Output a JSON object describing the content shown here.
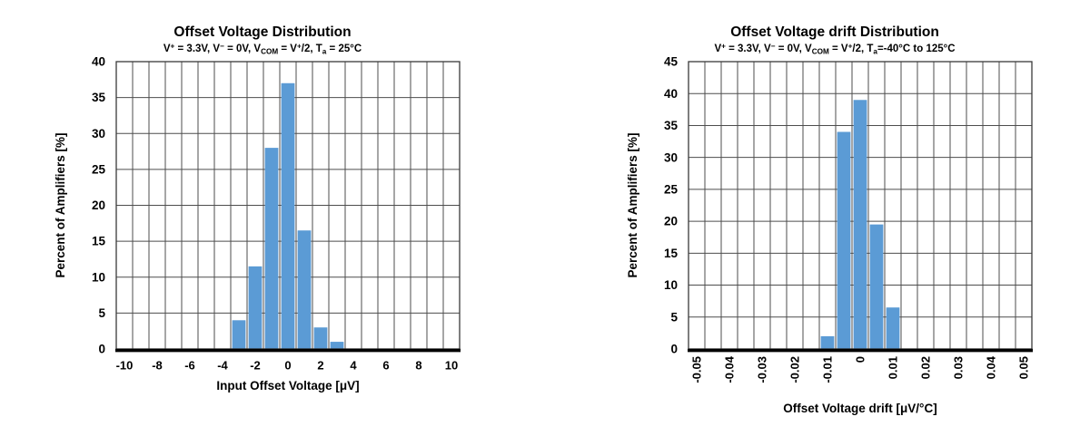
{
  "page": {
    "background": "#ffffff"
  },
  "colors": {
    "bar_fill": "#5b9bd5",
    "grid_line": "#4d4d4d",
    "plot_border": "#3a3a3a",
    "axis_line": "#000000",
    "text": "#000000"
  },
  "chart_data": [
    {
      "id": "offset-voltage-distribution",
      "type": "bar",
      "title": "Offset Voltage Distribution",
      "subtitle_segments": [
        {
          "text": "V"
        },
        {
          "text": "+",
          "style": "sup"
        },
        {
          "text": " = 3.3V, V"
        },
        {
          "text": "−",
          "style": "sup"
        },
        {
          "text": " = 0V, V"
        },
        {
          "text": "COM",
          "style": "sub"
        },
        {
          "text": " = V"
        },
        {
          "text": "+",
          "style": "sup"
        },
        {
          "text": "/2, T"
        },
        {
          "text": "a",
          "style": "sub"
        },
        {
          "text": " = 25°C"
        }
      ],
      "xlabel": "Input Offset Voltage [μV]",
      "ylabel": "Percent of Amplifiers [%]",
      "xlim": [
        -10.5,
        10.5
      ],
      "bin_width": 1,
      "ylim": [
        0,
        40
      ],
      "y_tick_step": 5,
      "x_tick_rotation": 0,
      "grid": true,
      "legend": false,
      "x_ticks": [
        {
          "value": -10,
          "label": "-10"
        },
        {
          "value": -8,
          "label": "-8"
        },
        {
          "value": -6,
          "label": "-6"
        },
        {
          "value": -4,
          "label": "-4"
        },
        {
          "value": -2,
          "label": "-2"
        },
        {
          "value": 0,
          "label": "0"
        },
        {
          "value": 2,
          "label": "2"
        },
        {
          "value": 4,
          "label": "4"
        },
        {
          "value": 6,
          "label": "6"
        },
        {
          "value": 8,
          "label": "8"
        },
        {
          "value": 10,
          "label": "10"
        }
      ],
      "bars": [
        {
          "x": -3,
          "value": 4
        },
        {
          "x": -2,
          "value": 11.5
        },
        {
          "x": -1,
          "value": 28
        },
        {
          "x": 0,
          "value": 37
        },
        {
          "x": 1,
          "value": 16.5
        },
        {
          "x": 2,
          "value": 3
        },
        {
          "x": 3,
          "value": 1
        }
      ]
    },
    {
      "id": "offset-voltage-drift-distribution",
      "type": "bar",
      "title": "Offset Voltage drift Distribution",
      "subtitle_segments": [
        {
          "text": "V"
        },
        {
          "text": "+",
          "style": "sup"
        },
        {
          "text": " = 3.3V, V"
        },
        {
          "text": "−",
          "style": "sup"
        },
        {
          "text": " = 0V, V"
        },
        {
          "text": "COM",
          "style": "sub"
        },
        {
          "text": " = V"
        },
        {
          "text": "+",
          "style": "sup"
        },
        {
          "text": "/2, T"
        },
        {
          "text": "a",
          "style": "sub"
        },
        {
          "text": "=-40°C to 125°C"
        }
      ],
      "xlabel": "Offset Voltage drift [μV/°C]",
      "ylabel": "Percent of Amplifiers [%]",
      "xlim": [
        -0.0525,
        0.0525
      ],
      "bin_width": 0.005,
      "ylim": [
        0,
        45
      ],
      "y_tick_step": 5,
      "x_tick_rotation": -90,
      "grid": true,
      "legend": false,
      "x_ticks": [
        {
          "value": -0.05,
          "label": "-0.05"
        },
        {
          "value": -0.04,
          "label": "-0.04"
        },
        {
          "value": -0.03,
          "label": "-0.03"
        },
        {
          "value": -0.02,
          "label": "-0.02"
        },
        {
          "value": -0.01,
          "label": "-0.01"
        },
        {
          "value": 0,
          "label": "0"
        },
        {
          "value": 0.01,
          "label": "0.01"
        },
        {
          "value": 0.02,
          "label": "0.02"
        },
        {
          "value": 0.03,
          "label": "0.03"
        },
        {
          "value": 0.04,
          "label": "0.04"
        },
        {
          "value": 0.05,
          "label": "0.05"
        }
      ],
      "bars": [
        {
          "x": -0.01,
          "value": 2
        },
        {
          "x": -0.005,
          "value": 34
        },
        {
          "x": 0,
          "value": 39
        },
        {
          "x": 0.005,
          "value": 19.5
        },
        {
          "x": 0.01,
          "value": 6.5
        }
      ]
    }
  ]
}
